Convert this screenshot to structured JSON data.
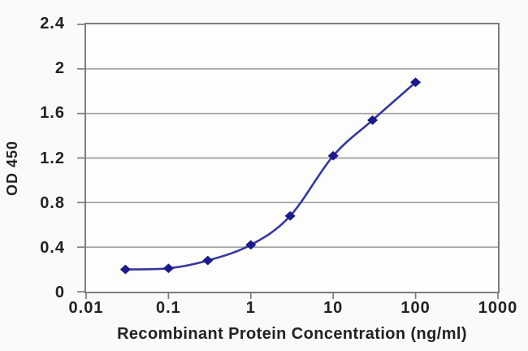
{
  "chart_data": {
    "type": "line",
    "x": [
      0.03,
      0.1,
      0.3,
      1,
      3,
      10,
      30,
      100
    ],
    "y": [
      0.2,
      0.21,
      0.28,
      0.42,
      0.68,
      1.22,
      1.54,
      1.88
    ],
    "title": "",
    "xlabel": "Recombinant Protein Concentration (ng/ml)",
    "ylabel": "OD 450",
    "x_scale": "log",
    "xlim": [
      0.01,
      1000
    ],
    "ylim": [
      0,
      2.4
    ],
    "x_tick_labels": [
      "0.01",
      "0.1",
      "1",
      "10",
      "100",
      "1000"
    ],
    "y_tick_labels": [
      "0",
      "0.4",
      "0.8",
      "1.2",
      "1.6",
      "2",
      "2.4"
    ],
    "grid": true,
    "legend": "none",
    "marker": "diamond",
    "line_color": "#3636a0",
    "marker_color": "#1a1a8c",
    "gridline_color": "#a0a0a0",
    "axis_color": "#7d7d7d",
    "text_color": "#222222",
    "plot_background": "#fdfdfc",
    "figure_background": "#fafaf8"
  }
}
